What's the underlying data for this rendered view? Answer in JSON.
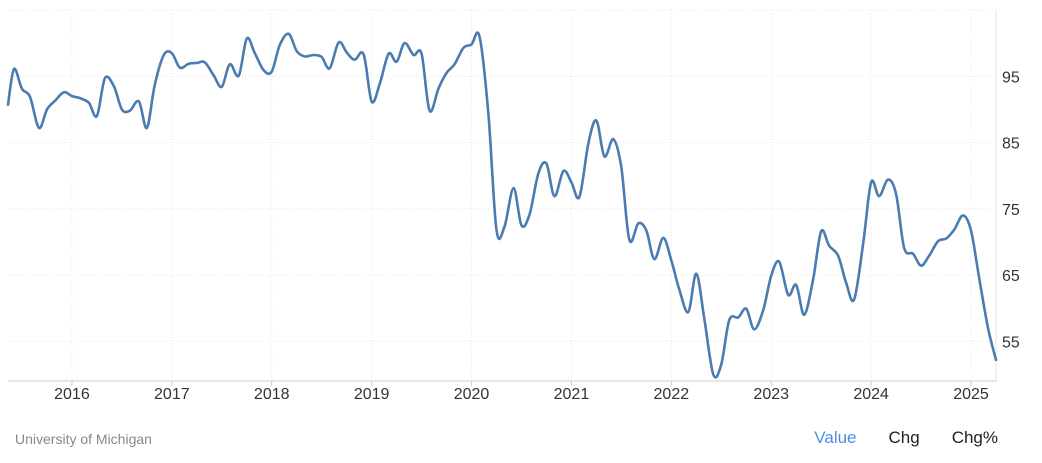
{
  "footer": {
    "source": "University of Michigan",
    "tabs": [
      {
        "label": "Value",
        "active": true
      },
      {
        "label": "Chg",
        "active": false
      },
      {
        "label": "Chg%",
        "active": false
      }
    ]
  },
  "colors": {
    "line": "#4a7bb1",
    "grid": "#e6e6e6",
    "active_tab": "#4a90e2"
  },
  "chart_data": {
    "type": "line",
    "title": "",
    "xlabel": "",
    "ylabel": "",
    "x_ticks": [
      "2016",
      "2017",
      "2018",
      "2019",
      "2020",
      "2021",
      "2022",
      "2023",
      "2024",
      "2025"
    ],
    "y_ticks": [
      55,
      65,
      75,
      85,
      95
    ],
    "xlim": [
      2015.36,
      2025.25
    ],
    "ylim": [
      49,
      105
    ],
    "y_axis_position": "right",
    "grid": true,
    "series": [
      {
        "x": [
          2015.36,
          2015.42,
          2015.5,
          2015.58,
          2015.67,
          2015.75,
          2015.83,
          2015.92,
          2016.0,
          2016.08,
          2016.17,
          2016.25,
          2016.33,
          2016.42,
          2016.5,
          2016.58,
          2016.67,
          2016.75,
          2016.83,
          2016.92,
          2017.0,
          2017.08,
          2017.17,
          2017.25,
          2017.33,
          2017.42,
          2017.5,
          2017.58,
          2017.67,
          2017.75,
          2017.83,
          2017.92,
          2018.0,
          2018.08,
          2018.17,
          2018.25,
          2018.33,
          2018.42,
          2018.5,
          2018.58,
          2018.67,
          2018.75,
          2018.83,
          2018.92,
          2019.0,
          2019.08,
          2019.17,
          2019.25,
          2019.33,
          2019.42,
          2019.5,
          2019.58,
          2019.67,
          2019.75,
          2019.83,
          2019.92,
          2020.0,
          2020.08,
          2020.17,
          2020.25,
          2020.33,
          2020.42,
          2020.5,
          2020.58,
          2020.67,
          2020.75,
          2020.83,
          2020.92,
          2021.0,
          2021.08,
          2021.17,
          2021.25,
          2021.33,
          2021.42,
          2021.5,
          2021.58,
          2021.67,
          2021.75,
          2021.83,
          2021.92,
          2022.0,
          2022.08,
          2022.17,
          2022.25,
          2022.33,
          2022.42,
          2022.5,
          2022.58,
          2022.67,
          2022.75,
          2022.83,
          2022.92,
          2023.0,
          2023.08,
          2023.17,
          2023.25,
          2023.33,
          2023.42,
          2023.5,
          2023.58,
          2023.67,
          2023.75,
          2023.83,
          2023.92,
          2024.0,
          2024.08,
          2024.17,
          2024.25,
          2024.33,
          2024.42,
          2024.5,
          2024.58,
          2024.67,
          2024.75,
          2024.83,
          2024.92,
          2025.0,
          2025.08,
          2025.17,
          2025.25
        ],
        "values": [
          90.7,
          96.1,
          93.1,
          91.9,
          87.2,
          90.0,
          91.3,
          92.6,
          92.0,
          91.7,
          91.0,
          89.0,
          94.7,
          93.5,
          90.0,
          89.8,
          91.2,
          87.2,
          93.8,
          98.2,
          98.5,
          96.3,
          96.9,
          97.0,
          97.1,
          95.1,
          93.4,
          96.8,
          95.1,
          100.7,
          98.5,
          95.9,
          95.7,
          99.7,
          101.4,
          98.8,
          98.0,
          98.2,
          97.9,
          96.2,
          100.1,
          98.6,
          97.5,
          98.3,
          91.2,
          93.8,
          98.4,
          97.2,
          100.0,
          98.2,
          98.4,
          89.8,
          93.2,
          95.5,
          96.8,
          99.3,
          99.8,
          101.0,
          89.1,
          71.8,
          72.3,
          78.1,
          72.5,
          74.1,
          80.4,
          81.8,
          76.9,
          80.7,
          79.0,
          76.8,
          84.9,
          88.3,
          82.9,
          85.5,
          81.2,
          70.3,
          72.8,
          71.7,
          67.4,
          70.6,
          67.2,
          62.8,
          59.4,
          65.2,
          58.4,
          50.0,
          51.5,
          58.2,
          58.6,
          59.9,
          56.8,
          59.7,
          64.9,
          67.0,
          62.0,
          63.5,
          59.0,
          64.4,
          71.6,
          69.4,
          67.9,
          63.8,
          61.3,
          69.7,
          79.0,
          76.9,
          79.4,
          77.2,
          69.1,
          68.2,
          66.4,
          67.9,
          70.1,
          70.5,
          71.8,
          74.0,
          71.7,
          64.7,
          57.0,
          52.2
        ]
      }
    ]
  }
}
